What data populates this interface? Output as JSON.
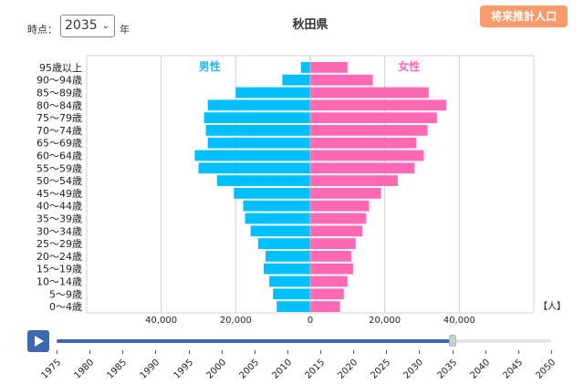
{
  "controls": {
    "year_prefix": "時点：",
    "year_value": "2035",
    "year_suffix": "年",
    "prefecture": "秋田県",
    "future_button": "将来推計人口"
  },
  "chart_data": {
    "type": "bar",
    "orientation": "horizontal-population-pyramid",
    "categories": [
      "95歳以上",
      "90～94歳",
      "85～89歳",
      "80～84歳",
      "75～79歳",
      "70～74歳",
      "65～69歳",
      "60～64歳",
      "55～59歳",
      "50～54歳",
      "45～49歳",
      "40～44歳",
      "35～39歳",
      "30～34歳",
      "25～29歳",
      "20～24歳",
      "15～19歳",
      "10～14歳",
      "5～9歳",
      "0～4歳"
    ],
    "series": [
      {
        "name": "男性",
        "color": "#00bfff",
        "values": [
          2500,
          7500,
          20000,
          27500,
          28500,
          28000,
          27500,
          31000,
          30000,
          25000,
          20500,
          18000,
          17500,
          16000,
          14000,
          12000,
          12500,
          11000,
          10000,
          9000
        ]
      },
      {
        "name": "女性",
        "color": "#ff69b4",
        "values": [
          10000,
          16800,
          31800,
          36500,
          34000,
          31500,
          28500,
          30500,
          28000,
          23500,
          19000,
          15800,
          15000,
          14000,
          12200,
          11000,
          11500,
          10000,
          9000,
          8000
        ]
      }
    ],
    "xlim": [
      -60000,
      60000
    ],
    "x_ticks": [
      "40,000",
      "20,000",
      "0",
      "20,000",
      "40,000"
    ],
    "x_tick_values": [
      -40000,
      -20000,
      0,
      20000,
      40000
    ],
    "unit": "【人】",
    "grid": true
  },
  "timeline": {
    "years": [
      "1975",
      "1980",
      "1985",
      "1990",
      "1995",
      "2000",
      "2005",
      "2010",
      "2015",
      "2020",
      "2025",
      "2030",
      "2035",
      "2040",
      "2045",
      "2050"
    ],
    "start": 1975,
    "end": 2050,
    "current": 2035
  }
}
